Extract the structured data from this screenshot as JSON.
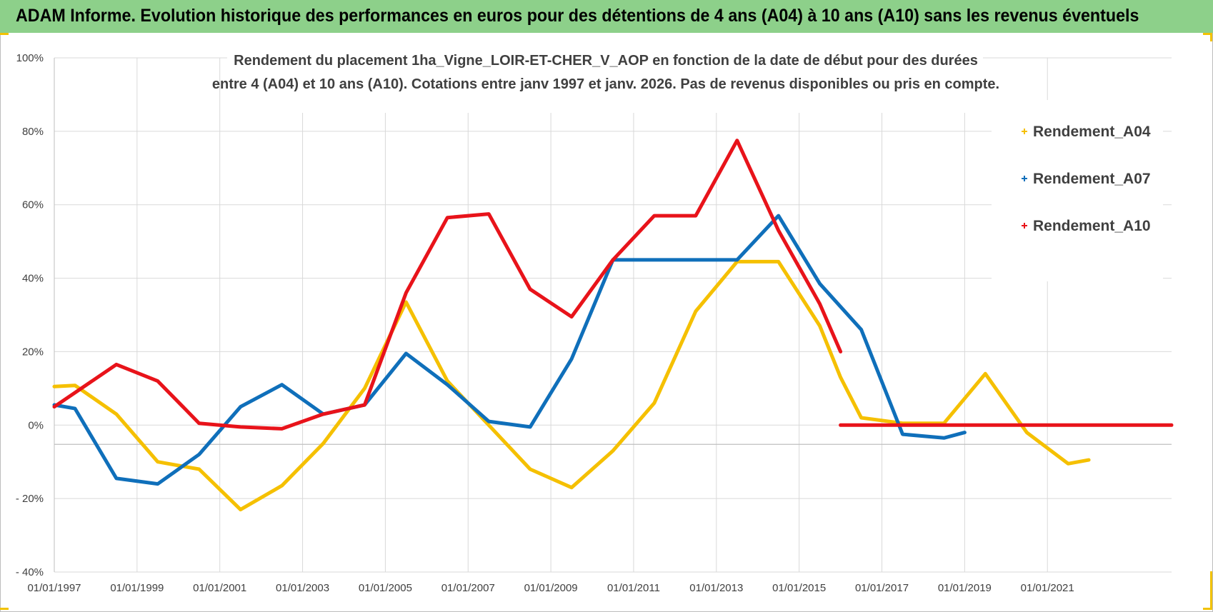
{
  "header": {
    "title": "ADAM Informe. Evolution historique des performances en euros pour des détentions de 4 ans (A04) à 10 ans (A10) sans les revenus éventuels"
  },
  "colors": {
    "header_bg": "#8dd08a",
    "corner_accent": "#f2c200"
  },
  "chart_data": {
    "type": "line",
    "title_lines": [
      "Rendement du placement 1ha_Vigne_LOIR-ET-CHER_V_AOP en fonction de la date de début pour des durées",
      "entre 4 (A04) et 10 ans (A10).  Cotations entre janv 1997 et janv. 2026. Pas de revenus disponibles ou pris en compte."
    ],
    "x_axis": {
      "type": "date",
      "range": [
        "1997-01-01",
        "2024-01-01"
      ],
      "tick_labels": [
        "01/01/1997",
        "01/01/1999",
        "01/01/2001",
        "01/01/2003",
        "01/01/2005",
        "01/01/2007",
        "01/01/2009",
        "01/01/2011",
        "01/01/2013",
        "01/01/2015",
        "01/01/2017",
        "01/01/2019",
        "01/01/2021"
      ]
    },
    "y_axis": {
      "min": -40,
      "max": 100,
      "unit": "%",
      "ticks": [
        {
          "value": 100,
          "label": "100%"
        },
        {
          "value": 80,
          "label": "80%"
        },
        {
          "value": 60,
          "label": "60%"
        },
        {
          "value": 40,
          "label": "40%"
        },
        {
          "value": 20,
          "label": "20%"
        },
        {
          "value": 0,
          "label": "0%"
        },
        {
          "value": -20,
          "label": "- 20%"
        },
        {
          "value": -40,
          "label": "- 40%"
        }
      ]
    },
    "grid": true,
    "legend_position": "right",
    "series": [
      {
        "name": "Rendement_A04",
        "color": "#f5c000",
        "points": [
          [
            "1997-01-01",
            10.5
          ],
          [
            "1997-07-01",
            10.8
          ],
          [
            "1998-07-01",
            3
          ],
          [
            "1999-07-01",
            -10
          ],
          [
            "2000-07-01",
            -12
          ],
          [
            "2001-07-01",
            -23
          ],
          [
            "2002-07-01",
            -16.5
          ],
          [
            "2003-07-01",
            -5
          ],
          [
            "2004-07-01",
            10
          ],
          [
            "2005-07-01",
            33.5
          ],
          [
            "2006-07-01",
            12
          ],
          [
            "2007-07-01",
            0
          ],
          [
            "2008-07-01",
            -12
          ],
          [
            "2009-07-01",
            -17
          ],
          [
            "2010-07-01",
            -7
          ],
          [
            "2011-07-01",
            6
          ],
          [
            "2012-07-01",
            31
          ],
          [
            "2013-07-01",
            44.5
          ],
          [
            "2014-07-01",
            44.5
          ],
          [
            "2015-07-01",
            27
          ],
          [
            "2016-01-01",
            13
          ],
          [
            "2016-07-01",
            2
          ],
          [
            "2017-07-01",
            0.5
          ],
          [
            "2018-07-01",
            0.5
          ],
          [
            "2019-07-01",
            14
          ],
          [
            "2020-07-01",
            -2
          ],
          [
            "2021-07-01",
            -10.5
          ],
          [
            "2022-01-01",
            -9.5
          ]
        ]
      },
      {
        "name": "Rendement_A07",
        "color": "#0f6fba",
        "points": [
          [
            "1997-01-01",
            5.5
          ],
          [
            "1997-07-01",
            4.5
          ],
          [
            "1998-07-01",
            -14.5
          ],
          [
            "1999-07-01",
            -16
          ],
          [
            "2000-07-01",
            -8
          ],
          [
            "2001-07-01",
            5
          ],
          [
            "2002-07-01",
            11
          ],
          [
            "2003-07-01",
            3
          ],
          [
            "2004-07-01",
            5.5
          ],
          [
            "2005-07-01",
            19.5
          ],
          [
            "2006-07-01",
            11
          ],
          [
            "2007-07-01",
            1
          ],
          [
            "2008-07-01",
            -0.5
          ],
          [
            "2009-07-01",
            18
          ],
          [
            "2010-07-01",
            45
          ],
          [
            "2011-07-01",
            45
          ],
          [
            "2012-07-01",
            45
          ],
          [
            "2013-07-01",
            45
          ],
          [
            "2014-07-01",
            57
          ],
          [
            "2015-07-01",
            38.5
          ],
          [
            "2016-07-01",
            26
          ],
          [
            "2017-07-01",
            -2.5
          ],
          [
            "2018-07-01",
            -3.5
          ],
          [
            "2019-01-01",
            -2
          ]
        ]
      },
      {
        "name": "Rendement_A10",
        "color": "#e8131a",
        "points": [
          [
            "1997-01-01",
            5
          ],
          [
            "1998-07-01",
            16.5
          ],
          [
            "1999-07-01",
            12
          ],
          [
            "2000-07-01",
            0.5
          ],
          [
            "2001-07-01",
            -0.5
          ],
          [
            "2002-07-01",
            -1
          ],
          [
            "2003-07-01",
            3
          ],
          [
            "2004-07-01",
            5.5
          ],
          [
            "2005-07-01",
            36
          ],
          [
            "2006-07-01",
            56.5
          ],
          [
            "2007-07-01",
            57.5
          ],
          [
            "2008-07-01",
            37
          ],
          [
            "2009-07-01",
            29.5
          ],
          [
            "2010-07-01",
            45
          ],
          [
            "2011-07-01",
            57
          ],
          [
            "2012-07-01",
            57
          ],
          [
            "2013-07-01",
            77.5
          ],
          [
            "2014-07-01",
            53
          ],
          [
            "2015-07-01",
            33
          ],
          [
            "2016-01-01",
            20
          ]
        ],
        "extra_segments": [
          [
            [
              "2016-01-01",
              0
            ],
            [
              "2024-01-01",
              0
            ]
          ]
        ]
      }
    ]
  }
}
